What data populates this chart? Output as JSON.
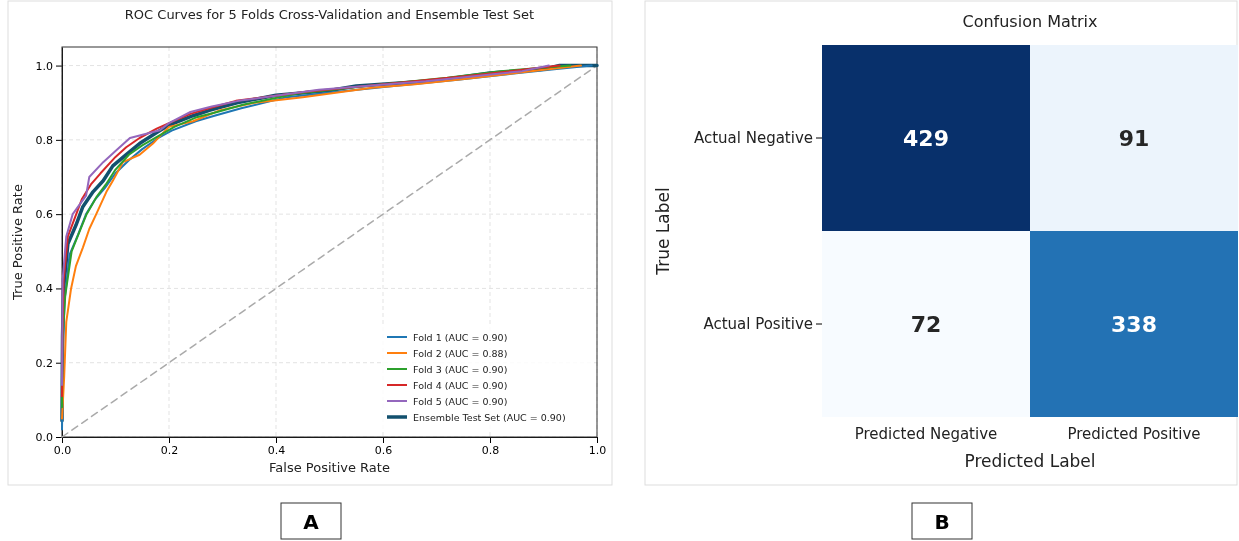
{
  "chart_data": [
    {
      "type": "line",
      "title": "ROC Curves for 5 Folds Cross-Validation and Ensemble Test Set",
      "xlabel": "False Positive Rate",
      "ylabel": "True Positive Rate",
      "xlim": [
        0,
        1
      ],
      "ylim": [
        0,
        1.05
      ],
      "xticks": [
        {
          "value": 0,
          "label": "0.0"
        },
        {
          "value": 0.2,
          "label": "0.2"
        },
        {
          "value": 0.4,
          "label": "0.4"
        },
        {
          "value": 0.6,
          "label": "0.6"
        },
        {
          "value": 0.8,
          "label": "0.8"
        },
        {
          "value": 1,
          "label": "1.0"
        }
      ],
      "yticks": [
        {
          "value": 0,
          "label": "0.0"
        },
        {
          "value": 0.2,
          "label": "0.2"
        },
        {
          "value": 0.4,
          "label": "0.4"
        },
        {
          "value": 0.6,
          "label": "0.6"
        },
        {
          "value": 0.8,
          "label": "0.8"
        },
        {
          "value": 1,
          "label": "1.0"
        }
      ],
      "grid": true,
      "legend": "bottom right",
      "annotations": [
        "A"
      ],
      "series": [
        {
          "x": [
            0,
            1
          ],
          "values": [
            0,
            1
          ],
          "color": "#aaaaaa",
          "line_style": "dashed"
        },
        {
          "name": "Fold 1 (AUC = 0.90)",
          "color": "#1f77b4",
          "x": [
            0,
            0.002,
            0.005,
            0.014,
            0.03,
            0.045,
            0.062,
            0.08,
            0.1,
            0.125,
            0.15,
            0.18,
            0.205,
            0.25,
            0.285,
            0.335,
            0.42,
            0.52,
            0.62,
            0.74,
            0.84,
            0.92,
            0.99
          ],
          "values": [
            0.02,
            0.25,
            0.37,
            0.49,
            0.545,
            0.6,
            0.64,
            0.67,
            0.71,
            0.745,
            0.775,
            0.805,
            0.825,
            0.85,
            0.865,
            0.885,
            0.915,
            0.93,
            0.945,
            0.962,
            0.978,
            0.99,
            1
          ]
        },
        {
          "name": "Fold 2 (AUC = 0.88)",
          "color": "#ff7f0e",
          "x": [
            0,
            0.004,
            0.008,
            0.017,
            0.026,
            0.039,
            0.051,
            0.064,
            0.083,
            0.095,
            0.114,
            0.145,
            0.17,
            0.183,
            0.2,
            0.245,
            0.296,
            0.36,
            0.45,
            0.58,
            0.66,
            0.76,
            0.86,
            0.97
          ],
          "values": [
            0.05,
            0.16,
            0.31,
            0.4,
            0.46,
            0.51,
            0.56,
            0.6,
            0.66,
            0.69,
            0.74,
            0.76,
            0.79,
            0.81,
            0.835,
            0.85,
            0.88,
            0.9,
            0.915,
            0.94,
            0.95,
            0.965,
            0.982,
            1
          ]
        },
        {
          "name": "Fold 3 (AUC = 0.90)",
          "color": "#2ca02c",
          "x": [
            0,
            0.001,
            0.006,
            0.018,
            0.032,
            0.046,
            0.064,
            0.082,
            0.1,
            0.125,
            0.15,
            0.18,
            0.21,
            0.25,
            0.29,
            0.34,
            0.44,
            0.6,
            0.72,
            0.82,
            0.95
          ],
          "values": [
            0.08,
            0.26,
            0.38,
            0.5,
            0.55,
            0.6,
            0.645,
            0.68,
            0.72,
            0.76,
            0.785,
            0.81,
            0.835,
            0.86,
            0.875,
            0.895,
            0.925,
            0.95,
            0.967,
            0.985,
            1
          ]
        },
        {
          "name": "Fold 4 (AUC = 0.90)",
          "color": "#d62728",
          "x": [
            0,
            0.001,
            0.003,
            0.011,
            0.024,
            0.037,
            0.054,
            0.072,
            0.1,
            0.12,
            0.145,
            0.177,
            0.2,
            0.24,
            0.275,
            0.325,
            0.46,
            0.64,
            0.78,
            0.88,
            0.93
          ],
          "values": [
            0.11,
            0.29,
            0.42,
            0.54,
            0.59,
            0.64,
            0.68,
            0.71,
            0.754,
            0.78,
            0.805,
            0.83,
            0.845,
            0.87,
            0.885,
            0.905,
            0.93,
            0.955,
            0.975,
            0.992,
            1
          ]
        },
        {
          "name": "Fold 5 (AUC = 0.90)",
          "color": "#9467bd",
          "x": [
            0,
            0.001,
            0.008,
            0.02,
            0.045,
            0.051,
            0.077,
            0.1,
            0.127,
            0.183,
            0.2,
            0.24,
            0.28,
            0.33,
            0.48,
            0.68,
            0.86,
            0.91
          ],
          "values": [
            0.14,
            0.42,
            0.54,
            0.6,
            0.65,
            0.7,
            0.74,
            0.77,
            0.805,
            0.826,
            0.845,
            0.875,
            0.89,
            0.905,
            0.935,
            0.958,
            0.985,
            1
          ]
        },
        {
          "name": "Ensemble Test Set (AUC = 0.90)",
          "color": "#12506e",
          "x": [
            0,
            0.001,
            0.003,
            0.011,
            0.026,
            0.039,
            0.058,
            0.077,
            0.095,
            0.12,
            0.145,
            0.177,
            0.2,
            0.245,
            0.277,
            0.327,
            0.4,
            0.5,
            0.55,
            0.7,
            0.8,
            0.9,
            0.93,
            1
          ],
          "values": [
            0.044,
            0.27,
            0.4,
            0.52,
            0.57,
            0.62,
            0.66,
            0.69,
            0.73,
            0.76,
            0.79,
            0.82,
            0.84,
            0.865,
            0.88,
            0.9,
            0.92,
            0.933,
            0.945,
            0.96,
            0.98,
            0.99,
            1,
            1
          ]
        }
      ]
    },
    {
      "type": "heatmap",
      "title": "Confusion Matrix",
      "xlabel": "Predicted Label",
      "ylabel": "True Label",
      "categories": [
        "Predicted Negative",
        "Predicted Positive"
      ],
      "y_categories": [
        "Actual Negative",
        "Actual Positive"
      ],
      "cells": [
        [
          429,
          91
        ],
        [
          72,
          338
        ]
      ],
      "data_labels": true,
      "annotations": [
        "B"
      ]
    }
  ]
}
